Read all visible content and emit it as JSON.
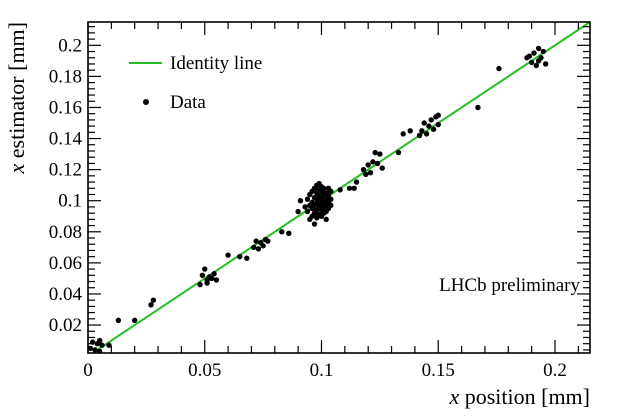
{
  "chart_data": {
    "type": "scatter",
    "xlabel": "x position [mm]",
    "ylabel": "x estimator [mm]",
    "xlim": [
      0,
      0.215
    ],
    "ylim": [
      0.002,
      0.215
    ],
    "xticks": [
      {
        "v": 0,
        "label": "0"
      },
      {
        "v": 0.05,
        "label": "0.05"
      },
      {
        "v": 0.1,
        "label": "0.1"
      },
      {
        "v": 0.15,
        "label": "0.15"
      },
      {
        "v": 0.2,
        "label": "0.2"
      }
    ],
    "yticks": [
      {
        "v": 0.02,
        "label": "0.02"
      },
      {
        "v": 0.04,
        "label": "0.04"
      },
      {
        "v": 0.06,
        "label": "0.06"
      },
      {
        "v": 0.08,
        "label": "0.08"
      },
      {
        "v": 0.1,
        "label": "0.1"
      },
      {
        "v": 0.12,
        "label": "0.12"
      },
      {
        "v": 0.14,
        "label": "0.14"
      },
      {
        "v": 0.16,
        "label": "0.16"
      },
      {
        "v": 0.18,
        "label": "0.18"
      },
      {
        "v": 0.2,
        "label": "0.2"
      }
    ],
    "grid": false,
    "legend_position": "top-left",
    "annotation": "LHCb preliminary",
    "series": [
      {
        "name": "Identity line",
        "kind": "line",
        "color": "#22c022",
        "points": [
          [
            0,
            0
          ],
          [
            0.215,
            0.215
          ]
        ]
      },
      {
        "name": "Data",
        "kind": "scatter",
        "color": "#000000",
        "points": [
          [
            0.001,
            0.005
          ],
          [
            0.002,
            0.009
          ],
          [
            0.003,
            0.004
          ],
          [
            0.004,
            0.008
          ],
          [
            0.005,
            0.01
          ],
          [
            0.006,
            0.007
          ],
          [
            0.005,
            0.003
          ],
          [
            0.009,
            0.007
          ],
          [
            0.013,
            0.023
          ],
          [
            0.02,
            0.023
          ],
          [
            0.027,
            0.033
          ],
          [
            0.028,
            0.036
          ],
          [
            0.048,
            0.046
          ],
          [
            0.049,
            0.052
          ],
          [
            0.05,
            0.056
          ],
          [
            0.051,
            0.049
          ],
          [
            0.052,
            0.051
          ],
          [
            0.053,
            0.05
          ],
          [
            0.054,
            0.053
          ],
          [
            0.055,
            0.049
          ],
          [
            0.051,
            0.047
          ],
          [
            0.06,
            0.065
          ],
          [
            0.065,
            0.064
          ],
          [
            0.068,
            0.063
          ],
          [
            0.071,
            0.07
          ],
          [
            0.072,
            0.074
          ],
          [
            0.073,
            0.069
          ],
          [
            0.074,
            0.073
          ],
          [
            0.075,
            0.071
          ],
          [
            0.076,
            0.075
          ],
          [
            0.077,
            0.074
          ],
          [
            0.083,
            0.08
          ],
          [
            0.086,
            0.079
          ],
          [
            0.09,
            0.093
          ],
          [
            0.091,
            0.1
          ],
          [
            0.093,
            0.096
          ],
          [
            0.094,
            0.093
          ],
          [
            0.094,
            0.101
          ],
          [
            0.095,
            0.097
          ],
          [
            0.095,
            0.104
          ],
          [
            0.096,
            0.09
          ],
          [
            0.096,
            0.095
          ],
          [
            0.096,
            0.099
          ],
          [
            0.096,
            0.106
          ],
          [
            0.097,
            0.092
          ],
          [
            0.097,
            0.097
          ],
          [
            0.097,
            0.102
          ],
          [
            0.097,
            0.108
          ],
          [
            0.098,
            0.089
          ],
          [
            0.098,
            0.094
          ],
          [
            0.098,
            0.098
          ],
          [
            0.098,
            0.101
          ],
          [
            0.098,
            0.105
          ],
          [
            0.098,
            0.11
          ],
          [
            0.099,
            0.091
          ],
          [
            0.099,
            0.095
          ],
          [
            0.099,
            0.097
          ],
          [
            0.099,
            0.1
          ],
          [
            0.099,
            0.103
          ],
          [
            0.099,
            0.107
          ],
          [
            0.1,
            0.09
          ],
          [
            0.1,
            0.094
          ],
          [
            0.1,
            0.098
          ],
          [
            0.1,
            0.102
          ],
          [
            0.1,
            0.106
          ],
          [
            0.1,
            0.109
          ],
          [
            0.101,
            0.092
          ],
          [
            0.101,
            0.096
          ],
          [
            0.101,
            0.099
          ],
          [
            0.101,
            0.104
          ],
          [
            0.101,
            0.108
          ],
          [
            0.102,
            0.093
          ],
          [
            0.102,
            0.097
          ],
          [
            0.102,
            0.101
          ],
          [
            0.102,
            0.105
          ],
          [
            0.103,
            0.095
          ],
          [
            0.103,
            0.099
          ],
          [
            0.103,
            0.103
          ],
          [
            0.103,
            0.108
          ],
          [
            0.104,
            0.097
          ],
          [
            0.104,
            0.101
          ],
          [
            0.104,
            0.106
          ],
          [
            0.097,
            0.085
          ],
          [
            0.095,
            0.088
          ],
          [
            0.102,
            0.088
          ],
          [
            0.099,
            0.111
          ],
          [
            0.108,
            0.107
          ],
          [
            0.112,
            0.108
          ],
          [
            0.115,
            0.112
          ],
          [
            0.114,
            0.108
          ],
          [
            0.118,
            0.12
          ],
          [
            0.119,
            0.117
          ],
          [
            0.12,
            0.123
          ],
          [
            0.121,
            0.118
          ],
          [
            0.122,
            0.125
          ],
          [
            0.123,
            0.131
          ],
          [
            0.124,
            0.124
          ],
          [
            0.125,
            0.13
          ],
          [
            0.126,
            0.121
          ],
          [
            0.133,
            0.131
          ],
          [
            0.135,
            0.143
          ],
          [
            0.138,
            0.145
          ],
          [
            0.142,
            0.142
          ],
          [
            0.143,
            0.145
          ],
          [
            0.144,
            0.15
          ],
          [
            0.145,
            0.143
          ],
          [
            0.146,
            0.148
          ],
          [
            0.147,
            0.152
          ],
          [
            0.148,
            0.146
          ],
          [
            0.149,
            0.154
          ],
          [
            0.15,
            0.149
          ],
          [
            0.15,
            0.155
          ],
          [
            0.167,
            0.16
          ],
          [
            0.176,
            0.185
          ],
          [
            0.188,
            0.192
          ],
          [
            0.189,
            0.193
          ],
          [
            0.19,
            0.189
          ],
          [
            0.191,
            0.195
          ],
          [
            0.192,
            0.187
          ],
          [
            0.193,
            0.19
          ],
          [
            0.193,
            0.198
          ],
          [
            0.194,
            0.192
          ],
          [
            0.195,
            0.196
          ],
          [
            0.196,
            0.188
          ]
        ]
      }
    ]
  }
}
